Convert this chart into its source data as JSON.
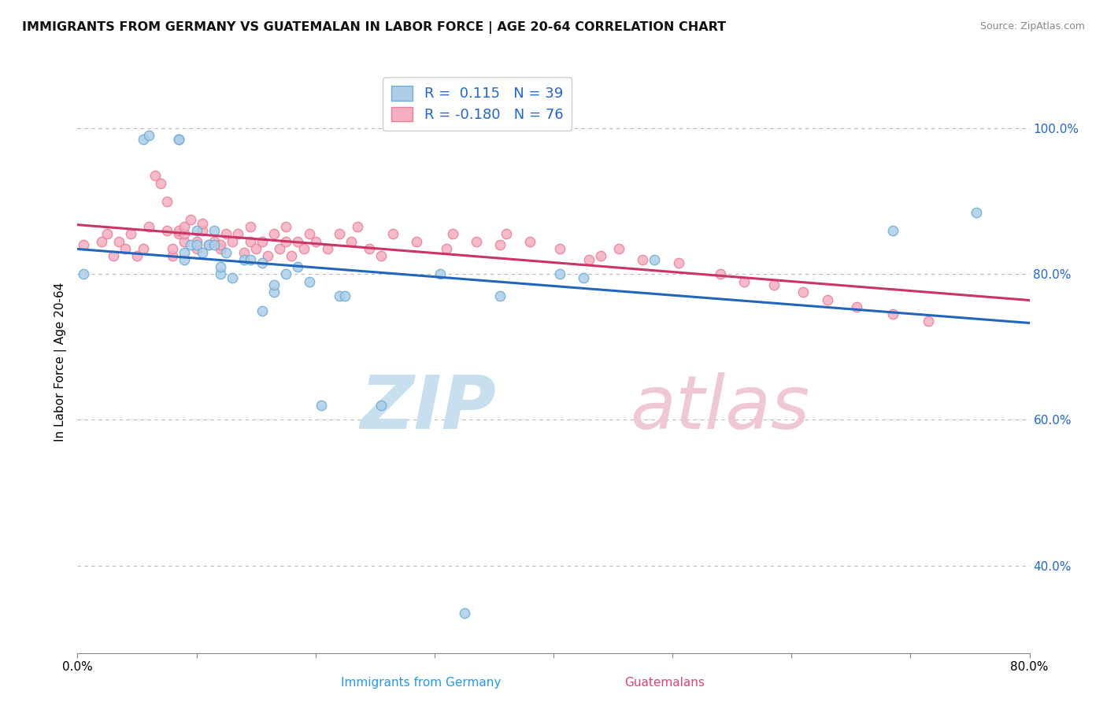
{
  "title": "IMMIGRANTS FROM GERMANY VS GUATEMALAN IN LABOR FORCE | AGE 20-64 CORRELATION CHART",
  "source": "Source: ZipAtlas.com",
  "xlabel_germany": "Immigrants from Germany",
  "xlabel_guatemalans": "Guatemalans",
  "ylabel": "In Labor Force | Age 20-64",
  "xlim": [
    0.0,
    0.8
  ],
  "ylim": [
    0.28,
    1.08
  ],
  "yticks": [
    0.4,
    0.6,
    0.8,
    1.0
  ],
  "yticklabels": [
    "40.0%",
    "60.0%",
    "80.0%",
    "100.0%"
  ],
  "germany_R": 0.115,
  "germany_N": 39,
  "guatemala_R": -0.18,
  "guatemala_N": 76,
  "germany_color": "#aecde8",
  "guatemala_color": "#f4afc0",
  "germany_edge": "#6baed6",
  "guatemala_edge": "#e8809a",
  "line_germany_color": "#2266bb",
  "line_guatemala_color": "#cc3366",
  "germany_x": [
    0.005,
    0.055,
    0.06,
    0.085,
    0.085,
    0.09,
    0.09,
    0.095,
    0.1,
    0.1,
    0.105,
    0.11,
    0.115,
    0.115,
    0.12,
    0.12,
    0.125,
    0.13,
    0.14,
    0.145,
    0.155,
    0.155,
    0.165,
    0.165,
    0.175,
    0.185,
    0.195,
    0.205,
    0.22,
    0.225,
    0.255,
    0.305,
    0.325,
    0.355,
    0.405,
    0.425,
    0.485,
    0.685,
    0.755
  ],
  "germany_y": [
    0.8,
    0.985,
    0.99,
    0.985,
    0.985,
    0.82,
    0.83,
    0.84,
    0.84,
    0.86,
    0.83,
    0.84,
    0.84,
    0.86,
    0.8,
    0.81,
    0.83,
    0.795,
    0.82,
    0.82,
    0.815,
    0.75,
    0.775,
    0.785,
    0.8,
    0.81,
    0.79,
    0.62,
    0.77,
    0.77,
    0.62,
    0.8,
    0.335,
    0.77,
    0.8,
    0.795,
    0.82,
    0.86,
    0.885
  ],
  "guatemala_x": [
    0.005,
    0.02,
    0.025,
    0.03,
    0.035,
    0.04,
    0.045,
    0.05,
    0.055,
    0.06,
    0.065,
    0.07,
    0.075,
    0.075,
    0.08,
    0.08,
    0.085,
    0.085,
    0.09,
    0.09,
    0.09,
    0.095,
    0.1,
    0.1,
    0.105,
    0.105,
    0.11,
    0.115,
    0.12,
    0.12,
    0.125,
    0.13,
    0.135,
    0.14,
    0.145,
    0.145,
    0.15,
    0.155,
    0.16,
    0.165,
    0.17,
    0.175,
    0.175,
    0.18,
    0.185,
    0.19,
    0.195,
    0.2,
    0.21,
    0.22,
    0.23,
    0.235,
    0.245,
    0.255,
    0.265,
    0.285,
    0.31,
    0.315,
    0.335,
    0.355,
    0.36,
    0.38,
    0.405,
    0.43,
    0.44,
    0.455,
    0.475,
    0.505,
    0.54,
    0.56,
    0.585,
    0.61,
    0.63,
    0.655,
    0.685,
    0.715
  ],
  "guatemala_y": [
    0.84,
    0.845,
    0.855,
    0.825,
    0.845,
    0.835,
    0.855,
    0.825,
    0.835,
    0.865,
    0.935,
    0.925,
    0.86,
    0.9,
    0.825,
    0.835,
    0.855,
    0.86,
    0.845,
    0.855,
    0.865,
    0.875,
    0.835,
    0.845,
    0.86,
    0.87,
    0.84,
    0.845,
    0.835,
    0.84,
    0.855,
    0.845,
    0.855,
    0.83,
    0.845,
    0.865,
    0.835,
    0.845,
    0.825,
    0.855,
    0.835,
    0.845,
    0.865,
    0.825,
    0.845,
    0.835,
    0.855,
    0.845,
    0.835,
    0.855,
    0.845,
    0.865,
    0.835,
    0.825,
    0.855,
    0.845,
    0.835,
    0.855,
    0.845,
    0.84,
    0.855,
    0.845,
    0.835,
    0.82,
    0.825,
    0.835,
    0.82,
    0.815,
    0.8,
    0.79,
    0.785,
    0.775,
    0.765,
    0.755,
    0.745,
    0.735
  ],
  "watermark_zip_color": "#c8dff0",
  "watermark_atlas_color": "#f0c8d4"
}
